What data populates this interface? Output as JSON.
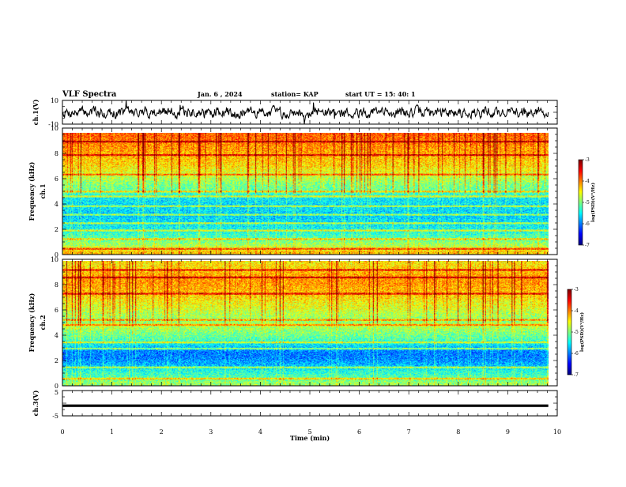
{
  "header": {
    "title": "VLF Spectra",
    "date": "Jan. 6 , 2024",
    "station": "station= KAP",
    "start_ut": "start UT = 15: 40: 1"
  },
  "chart_data": [
    {
      "type": "line",
      "id": "ch1-waveform",
      "ylabel": "ch.1(V)",
      "ylim": [
        -10,
        10
      ],
      "y_tick_labels": [
        "10",
        "-10"
      ],
      "x_range_min": [
        0,
        10
      ],
      "data_extent_min": [
        0,
        9.82
      ],
      "series": [
        {
          "values_approx": "noise waveform, roughly -4 to 4 V, occasional spikes toward ±10 V"
        }
      ]
    },
    {
      "type": "heatmap",
      "id": "ch1-spectrogram",
      "ylabel": "ch.1 Frequency (kHz)",
      "xlim": [
        0,
        10
      ],
      "ylim": [
        0,
        10
      ],
      "y_tick_labels": [
        "0",
        "2",
        "4",
        "6",
        "8",
        "10"
      ],
      "data_extent_min": [
        0,
        9.82
      ],
      "colorbar": {
        "label": "log(PSD)(V²/Hz)",
        "range": [
          -7,
          -3
        ],
        "tick_labels": [
          "-3",
          "-4",
          "-5",
          "-6",
          "-7"
        ]
      },
      "frequency_profile_log_psd": [
        {
          "f_khz": 0.25,
          "v": -4.3
        },
        {
          "f_khz": 0.75,
          "v": -4.8
        },
        {
          "f_khz": 1.25,
          "v": -5.1
        },
        {
          "f_khz": 1.75,
          "v": -5.3
        },
        {
          "f_khz": 2.25,
          "v": -5.5
        },
        {
          "f_khz": 2.75,
          "v": -5.6
        },
        {
          "f_khz": 3.25,
          "v": -5.7
        },
        {
          "f_khz": 3.75,
          "v": -5.6
        },
        {
          "f_khz": 4.25,
          "v": -5.6
        },
        {
          "f_khz": 4.75,
          "v": -5.5
        },
        {
          "f_khz": 5.25,
          "v": -5.1
        },
        {
          "f_khz": 5.75,
          "v": -5.0
        },
        {
          "f_khz": 6.25,
          "v": -4.8
        },
        {
          "f_khz": 6.75,
          "v": -4.6
        },
        {
          "f_khz": 7.25,
          "v": -4.4
        },
        {
          "f_khz": 7.75,
          "v": -4.3
        },
        {
          "f_khz": 8.25,
          "v": -4.2
        },
        {
          "f_khz": 8.75,
          "v": -4.1
        },
        {
          "f_khz": 9.25,
          "v": -4.0
        },
        {
          "f_khz": 9.75,
          "v": -3.9
        }
      ],
      "horizontal_lines_khz": [
        0.5,
        1.3,
        2.0,
        2.6,
        3.3,
        4.0,
        4.8,
        5.2,
        6.6,
        8.2,
        9.3
      ]
    },
    {
      "type": "heatmap",
      "id": "ch2-spectrogram",
      "ylabel": "ch.2 Frequency (kHz)",
      "xlim": [
        0,
        10
      ],
      "ylim": [
        0,
        10
      ],
      "y_tick_labels": [
        "0",
        "2",
        "4",
        "6",
        "8",
        "10"
      ],
      "data_extent_min": [
        0,
        9.82
      ],
      "colorbar": {
        "label": "log(PSD)(V²/Hz)",
        "range": [
          -7,
          -3
        ],
        "tick_labels": [
          "-3",
          "-4",
          "-5",
          "-6",
          "-7"
        ]
      },
      "frequency_profile_log_psd": [
        {
          "f_khz": 0.25,
          "v": -4.9
        },
        {
          "f_khz": 0.75,
          "v": -5.2
        },
        {
          "f_khz": 1.25,
          "v": -5.4
        },
        {
          "f_khz": 1.75,
          "v": -5.8
        },
        {
          "f_khz": 2.25,
          "v": -6.0
        },
        {
          "f_khz": 2.75,
          "v": -6.0
        },
        {
          "f_khz": 3.25,
          "v": -5.6
        },
        {
          "f_khz": 3.75,
          "v": -5.2
        },
        {
          "f_khz": 4.25,
          "v": -5.0
        },
        {
          "f_khz": 4.75,
          "v": -4.8
        },
        {
          "f_khz": 5.25,
          "v": -4.9
        },
        {
          "f_khz": 5.75,
          "v": -4.8
        },
        {
          "f_khz": 6.25,
          "v": -4.6
        },
        {
          "f_khz": 6.75,
          "v": -4.5
        },
        {
          "f_khz": 7.25,
          "v": -4.3
        },
        {
          "f_khz": 7.75,
          "v": -4.2
        },
        {
          "f_khz": 8.25,
          "v": -4.1
        },
        {
          "f_khz": 8.75,
          "v": -4.1
        },
        {
          "f_khz": 9.25,
          "v": -4.3
        },
        {
          "f_khz": 9.75,
          "v": -4.4
        }
      ],
      "horizontal_lines_khz": [
        0.6,
        1.5,
        3.0,
        3.5,
        4.9,
        5.3,
        7.4,
        8.7,
        9.3
      ]
    },
    {
      "type": "line",
      "id": "ch3-waveform",
      "ylabel": "ch.3(V)",
      "ylim": [
        -5,
        5
      ],
      "y_tick_labels": [
        "5",
        "-5"
      ],
      "xlabel": "Time (min)",
      "x_tick_labels": [
        "0",
        "1",
        "2",
        "3",
        "4",
        "5",
        "6",
        "7",
        "8",
        "9",
        "10"
      ],
      "data_extent_min": [
        0,
        9.82
      ],
      "series": [
        {
          "constant_band_v": [
            -1.5,
            -0.5
          ]
        }
      ]
    }
  ]
}
